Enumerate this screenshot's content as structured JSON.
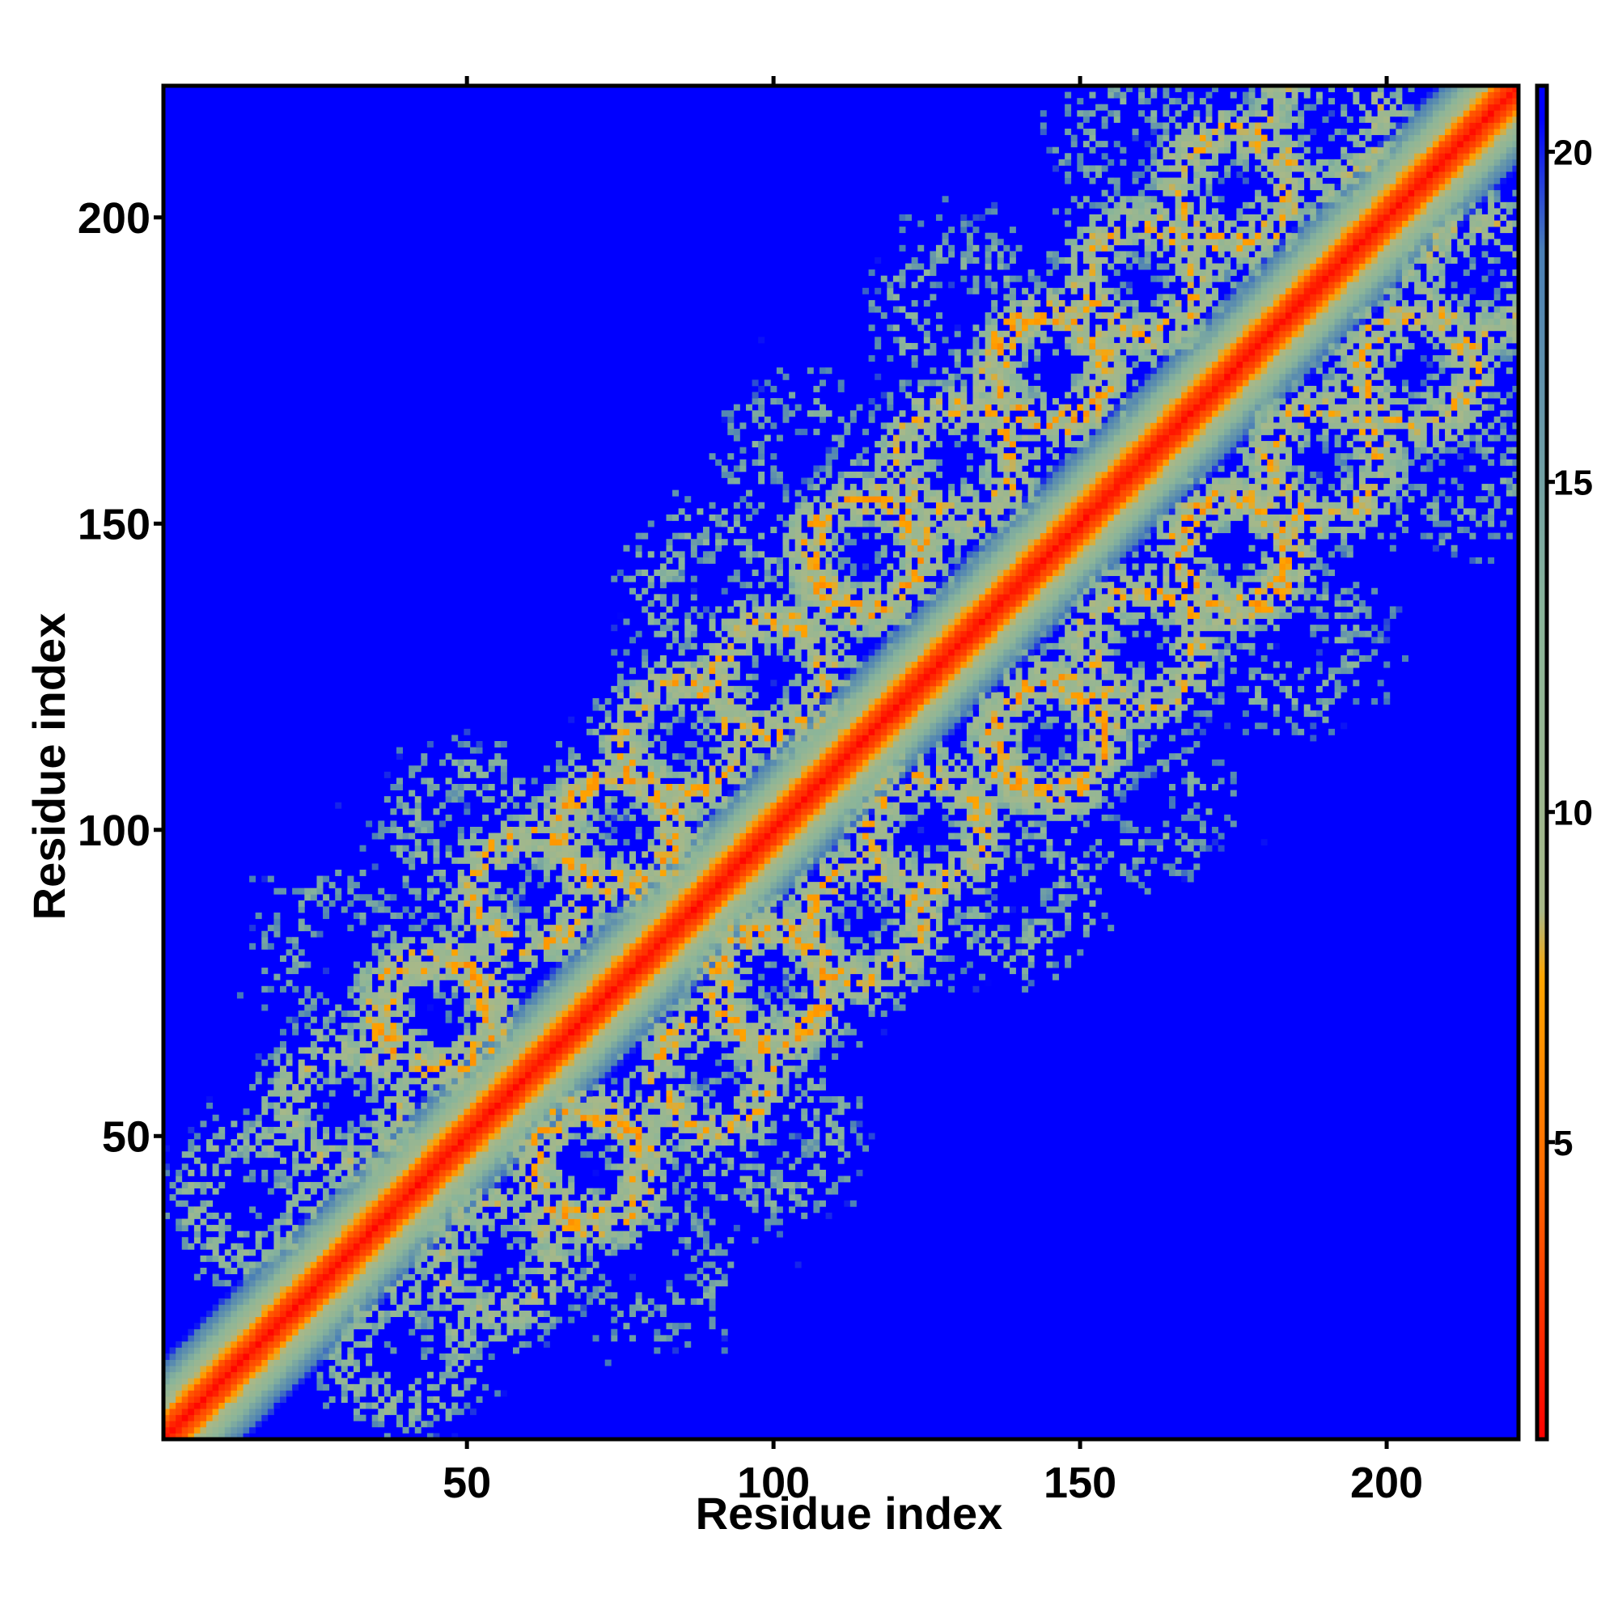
{
  "chart_data": {
    "type": "heatmap",
    "title": "",
    "xlabel": "Residue index",
    "ylabel": "Residue index",
    "n_residues": 221,
    "xlim": [
      1,
      221
    ],
    "ylim": [
      1,
      221
    ],
    "x_ticks": [
      50,
      100,
      150,
      200
    ],
    "y_ticks": [
      50,
      100,
      150,
      200
    ],
    "x_tick_labels": [
      "50",
      "100",
      "150",
      "200"
    ],
    "y_tick_labels": [
      "50",
      "100",
      "150",
      "200"
    ],
    "colorbar": {
      "range": [
        0.5,
        21
      ],
      "ticks": [
        5,
        10,
        15,
        20
      ],
      "tick_labels": [
        "5",
        "10",
        "15",
        "20"
      ],
      "stops": [
        {
          "value": 0.5,
          "color": "#ff0000"
        },
        {
          "value": 4.5,
          "color": "#ff6a00"
        },
        {
          "value": 7.5,
          "color": "#ffa500"
        },
        {
          "value": 8.5,
          "color": "#a8b888"
        },
        {
          "value": 13,
          "color": "#8ab59a"
        },
        {
          "value": 18.5,
          "color": "#4a7fb6"
        },
        {
          "value": 20.5,
          "color": "#0000ff"
        }
      ]
    },
    "background_value": 21,
    "diagonal_band": {
      "core_width_residues": 3,
      "mid_width_residues": 6,
      "outer_width_residues": 13
    },
    "contact_lobes": {
      "description_value": "symmetric distance map with alternating contact patches along the diagonal",
      "centers": [
        {
          "i": 15,
          "j": 40,
          "strength": 0.55
        },
        {
          "i": 30,
          "j": 55,
          "strength": 0.7
        },
        {
          "i": 45,
          "j": 70,
          "strength": 0.85
        },
        {
          "i": 60,
          "j": 90,
          "strength": 0.8
        },
        {
          "i": 75,
          "j": 100,
          "strength": 0.85
        },
        {
          "i": 85,
          "j": 115,
          "strength": 0.8
        },
        {
          "i": 100,
          "j": 125,
          "strength": 0.8
        },
        {
          "i": 115,
          "j": 145,
          "strength": 0.85
        },
        {
          "i": 130,
          "j": 160,
          "strength": 0.8
        },
        {
          "i": 145,
          "j": 175,
          "strength": 0.85
        },
        {
          "i": 160,
          "j": 190,
          "strength": 0.8
        },
        {
          "i": 175,
          "j": 205,
          "strength": 0.8
        },
        {
          "i": 190,
          "j": 215,
          "strength": 0.7
        },
        {
          "i": 50,
          "j": 100,
          "strength": 0.45
        },
        {
          "i": 90,
          "j": 140,
          "strength": 0.45
        },
        {
          "i": 130,
          "j": 185,
          "strength": 0.4
        },
        {
          "i": 160,
          "j": 210,
          "strength": 0.35
        },
        {
          "i": 30,
          "j": 80,
          "strength": 0.35
        },
        {
          "i": 105,
          "j": 160,
          "strength": 0.35
        }
      ]
    }
  }
}
